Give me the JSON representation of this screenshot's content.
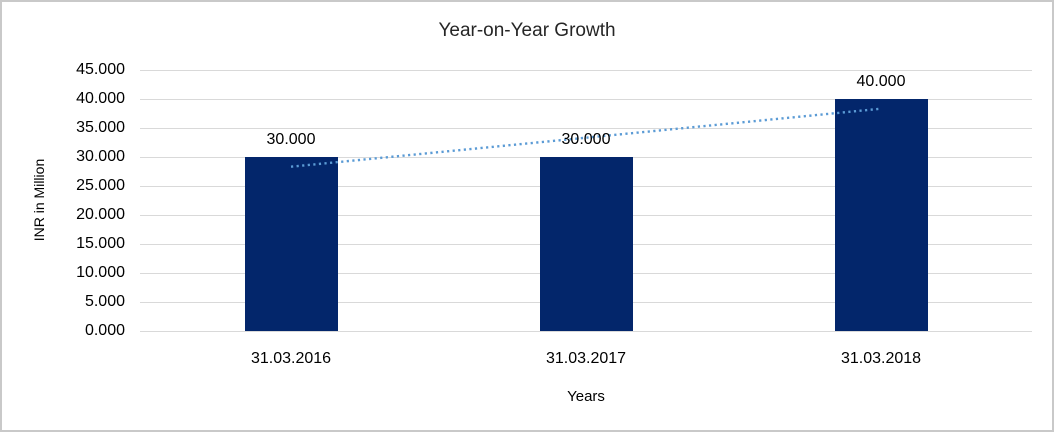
{
  "chart_data": {
    "type": "bar",
    "title": "Year-on-Year Growth",
    "xlabel": "Years",
    "ylabel": "INR in Million",
    "categories": [
      "31.03.2016",
      "31.03.2017",
      "31.03.2018"
    ],
    "values": [
      30,
      30,
      40
    ],
    "data_labels": [
      "30.000",
      "30.000",
      "40.000"
    ],
    "ylim": [
      0,
      45
    ],
    "ytick_step": 5,
    "ytick_labels": [
      "0.000",
      "5.000",
      "10.000",
      "15.000",
      "20.000",
      "25.000",
      "30.000",
      "35.000",
      "40.000",
      "45.000"
    ],
    "grid": "horizontal",
    "legend": "none",
    "bar_color": "#03266B",
    "gridline_color": "#D9D9D9",
    "border_color": "#C9C9C9",
    "trendline": {
      "type": "linear",
      "style": "dotted",
      "color": "#5B9BD5",
      "start_value": 28.33,
      "end_value": 38.33
    }
  }
}
